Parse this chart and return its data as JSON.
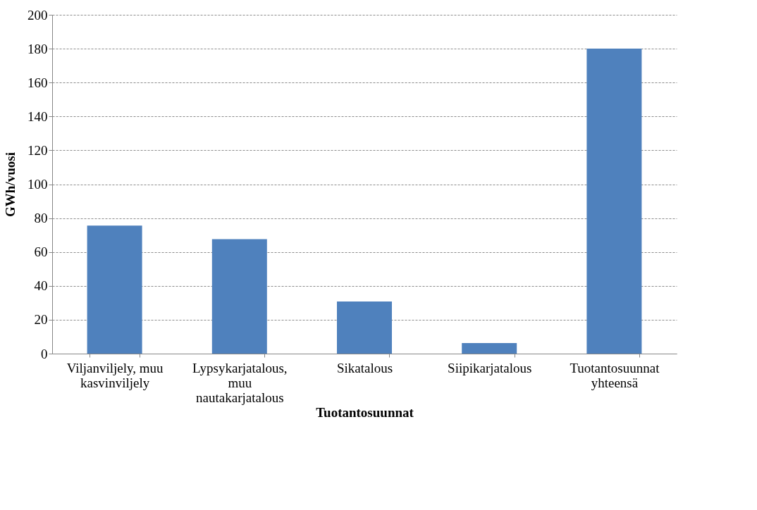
{
  "chart_data": {
    "type": "bar",
    "xlabel": "Tuotantosuunnat",
    "ylabel": "GWh/vuosi",
    "categories": [
      "Viljanviljely, muu kasvinviljely",
      "Lypsykarjatalous, muu nautakarjatalous",
      "Sikatalous",
      "Siipikarjatalous",
      "Tuotantosuunnat yhteensä"
    ],
    "values": [
      75.6,
      67.6,
      30.8,
      6.2,
      180
    ],
    "color": "#4f81bd",
    "ylim": [
      0,
      200
    ],
    "yticks": [
      0,
      20,
      40,
      60,
      80,
      100,
      120,
      140,
      160,
      180,
      200
    ],
    "grid": "y"
  }
}
